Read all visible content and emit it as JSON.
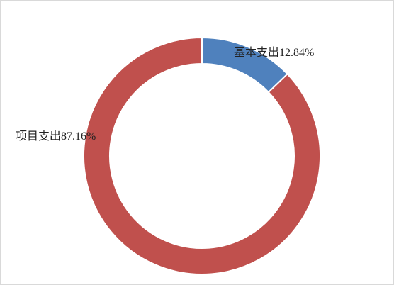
{
  "chart_data": {
    "type": "donut",
    "categories": [
      "基本支出",
      "项目支出"
    ],
    "values": [
      12.84,
      87.16
    ],
    "value_labels": [
      "12.84%",
      "87.16%"
    ],
    "colors": [
      "#4f81bd",
      "#c0504d"
    ]
  }
}
